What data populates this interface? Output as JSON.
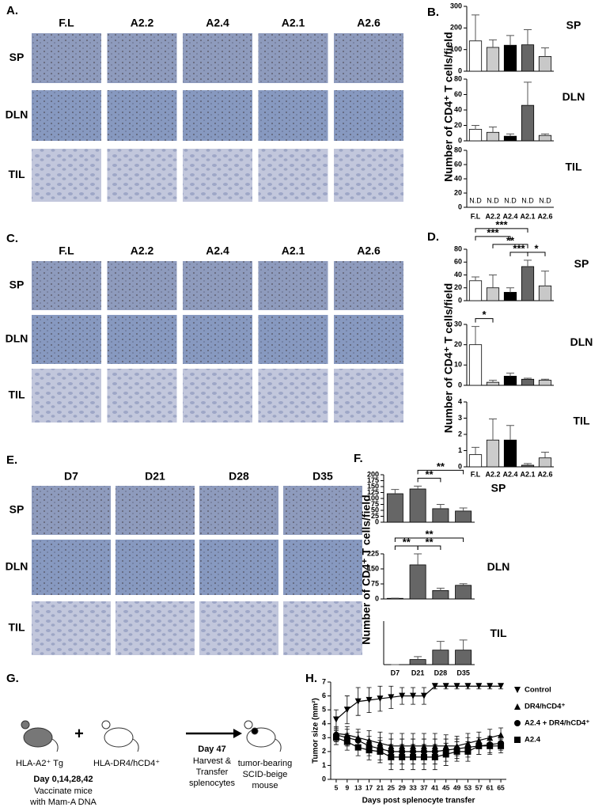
{
  "image_panels": [
    {
      "label": "A.",
      "columns": [
        "F.L",
        "A2.2",
        "A2.4",
        "A2.1",
        "A2.6"
      ],
      "rows": [
        "SP",
        "DLN",
        "TIL"
      ]
    },
    {
      "label": "C.",
      "columns": [
        "F.L",
        "A2.2",
        "A2.4",
        "A2.1",
        "A2.6"
      ],
      "rows": [
        "SP",
        "DLN",
        "TIL"
      ]
    },
    {
      "label": "E.",
      "columns": [
        "D7",
        "D21",
        "D28",
        "D35"
      ],
      "rows": [
        "SP",
        "DLN",
        "TIL"
      ]
    }
  ],
  "diagram": {
    "label": "G.",
    "donor": "HLA-A2⁺ Tg",
    "plus": "+",
    "helper": "HLA-DR4/hCD4⁺",
    "schedule": [
      "Day 0,14,28,42",
      "Vaccinate mice",
      "with Mam-A DNA"
    ],
    "transfer": [
      "Day 47",
      "Harvest &",
      "Transfer",
      "splenocytes"
    ],
    "recipient": [
      "tumor-bearing",
      "SCID-beige",
      "mouse"
    ]
  },
  "chart_data": [
    {
      "type": "bar",
      "label": "B.",
      "ylabel": "Number of CD4⁺ T cells/field",
      "categories": [
        "F.L",
        "A2.2",
        "A2.4",
        "A2.1",
        "A2.6"
      ],
      "colors": [
        "#ffffff",
        "#cccccc",
        "#000000",
        "#666666",
        "#c8c8c8"
      ],
      "subplots": [
        {
          "title": "SP",
          "values": [
            140,
            110,
            120,
            122,
            68
          ],
          "errors": [
            120,
            35,
            45,
            70,
            40
          ],
          "ylim": [
            0,
            300
          ],
          "yticks": [
            0,
            100,
            200,
            300
          ]
        },
        {
          "title": "DLN",
          "values": [
            15,
            11,
            6,
            46,
            7
          ],
          "errors": [
            5,
            7,
            3,
            30,
            2
          ],
          "ylim": [
            0,
            80
          ],
          "yticks": [
            0,
            20,
            40,
            60,
            80
          ]
        },
        {
          "title": "TIL",
          "values": [
            null,
            null,
            null,
            null,
            null
          ],
          "value_labels": [
            "N.D",
            "N.D",
            "N.D",
            "N.D",
            "N.D"
          ],
          "ylim": [
            0,
            80
          ],
          "yticks": [
            0,
            20,
            40,
            60,
            80
          ]
        }
      ]
    },
    {
      "type": "bar",
      "label": "D.",
      "ylabel": "Number of CD4⁺ T cells/field",
      "categories": [
        "F.L",
        "A2.2",
        "A2.4",
        "A2.1",
        "A2.6"
      ],
      "colors": [
        "#ffffff",
        "#cccccc",
        "#000000",
        "#666666",
        "#c8c8c8"
      ],
      "subplots": [
        {
          "title": "SP",
          "values": [
            31,
            20,
            13,
            53,
            23
          ],
          "errors": [
            6,
            20,
            7,
            10,
            23
          ],
          "ylim": [
            0,
            80
          ],
          "yticks": [
            0,
            20,
            40,
            60,
            80
          ],
          "brackets": [
            {
              "between": [
                "F.L",
                "A2.1"
              ],
              "label": "***"
            },
            {
              "between": [
                "A2.2",
                "A2.1"
              ],
              "label": "**"
            },
            {
              "between": [
                "A2.4",
                "A2.1"
              ],
              "label": "***"
            },
            {
              "between": [
                "A2.1",
                "A2.6"
              ],
              "label": "*"
            },
            {
              "between": [
                "F.L",
                "A2.4"
              ],
              "label": "***"
            }
          ]
        },
        {
          "title": "DLN",
          "values": [
            20,
            1.5,
            4.5,
            3,
            2.5
          ],
          "errors": [
            9,
            1,
            1.5,
            0.5,
            0.5
          ],
          "ylim": [
            0,
            30
          ],
          "yticks": [
            0,
            10,
            20,
            30
          ],
          "brackets": [
            {
              "between": [
                "F.L",
                "A2.2"
              ],
              "label": "*"
            }
          ]
        },
        {
          "title": "TIL",
          "values": [
            0.75,
            1.65,
            1.65,
            0.1,
            0.55
          ],
          "errors": [
            0.45,
            1.3,
            0.9,
            0.1,
            0.35
          ],
          "ylim": [
            0,
            4
          ],
          "yticks": [
            0,
            1,
            2,
            3,
            4
          ]
        }
      ]
    },
    {
      "type": "bar",
      "label": "F.",
      "ylabel": "Number of CD4⁺ T cells/field",
      "categories": [
        "D7",
        "D21",
        "D28",
        "D35"
      ],
      "colors": [
        "#666666",
        "#666666",
        "#666666",
        "#666666"
      ],
      "subplots": [
        {
          "title": "SP",
          "values": [
            120,
            140,
            57,
            47
          ],
          "errors": [
            18,
            12,
            18,
            13
          ],
          "ylim": [
            0,
            200
          ],
          "yticks": [
            0,
            25,
            50,
            75,
            100,
            125,
            150,
            175,
            200
          ],
          "brackets": [
            {
              "between": [
                "D21",
                "D28"
              ],
              "label": "**"
            },
            {
              "between": [
                "D21",
                "D35"
              ],
              "label": "**"
            }
          ]
        },
        {
          "title": "DLN",
          "values": [
            3,
            170,
            42,
            68
          ],
          "errors": [
            1,
            55,
            12,
            8
          ],
          "ylim": [
            0,
            225
          ],
          "yticks": [
            0,
            75,
            150,
            225
          ],
          "brackets": [
            {
              "between": [
                "D7",
                "D21"
              ],
              "label": "**"
            },
            {
              "between": [
                "D21",
                "D28"
              ],
              "label": "**"
            },
            {
              "between": [
                "D7",
                "D35"
              ],
              "label": "**"
            }
          ]
        },
        {
          "title": "TIL",
          "values": [
            0,
            0.35,
            1,
            1
          ],
          "errors": [
            0,
            0.2,
            0.6,
            0.7
          ],
          "ylim": [
            0,
            3
          ]
        }
      ]
    },
    {
      "type": "line",
      "label": "H.",
      "ylabel": "Tumor size (mm²)",
      "xlabel": "Days post splenocyte transfer",
      "x": [
        5,
        9,
        13,
        17,
        21,
        25,
        29,
        33,
        37,
        41,
        45,
        49,
        53,
        57,
        61,
        65
      ],
      "xlim": [
        3,
        67
      ],
      "xticks": [
        5,
        9,
        13,
        17,
        21,
        25,
        29,
        33,
        37,
        41,
        45,
        49,
        53,
        57,
        61,
        65
      ],
      "ylim": [
        0,
        7
      ],
      "yticks": [
        0,
        1,
        2,
        3,
        4,
        5,
        6,
        7
      ],
      "series": [
        {
          "name": "Control",
          "color": "#000000",
          "marker": "triangle-down",
          "values": [
            4.3,
            5.0,
            5.6,
            5.7,
            5.8,
            5.9,
            6.0,
            6.0,
            6.0,
            6.7,
            6.7,
            6.7,
            6.7,
            6.7,
            6.7,
            6.7
          ],
          "errors": [
            0.7,
            1.0,
            1.0,
            0.9,
            0.9,
            0.8,
            0.6,
            0.6,
            0.6,
            0.2,
            0.2,
            0.2,
            0.2,
            0.2,
            0.2,
            0.2
          ]
        },
        {
          "name": "DR4/hCD4⁺",
          "color": "#000000",
          "marker": "triangle-up",
          "values": [
            3.3,
            3.2,
            3.0,
            2.8,
            2.6,
            2.4,
            2.4,
            2.4,
            2.4,
            2.4,
            2.4,
            2.4,
            2.6,
            2.8,
            3.0,
            3.2
          ],
          "errors": [
            0.5,
            0.6,
            0.6,
            0.7,
            0.8,
            0.9,
            0.9,
            0.9,
            0.9,
            0.9,
            0.8,
            0.7,
            0.7,
            0.6,
            0.6,
            0.5
          ]
        },
        {
          "name": "A2.4 + DR4/hCD4⁺",
          "color": "#000000",
          "marker": "circle",
          "values": [
            3.2,
            3.0,
            2.8,
            2.4,
            2.2,
            2.0,
            2.0,
            2.0,
            2.0,
            2.0,
            2.1,
            2.2,
            2.3,
            2.4,
            2.5,
            2.6
          ],
          "errors": [
            0.5,
            0.6,
            0.6,
            0.7,
            0.8,
            0.9,
            0.9,
            0.9,
            0.9,
            0.9,
            0.8,
            0.7,
            0.7,
            0.6,
            0.6,
            0.5
          ]
        },
        {
          "name": "A2.4",
          "color": "#000000",
          "marker": "square",
          "values": [
            3.0,
            2.7,
            2.3,
            2.1,
            2.0,
            1.6,
            1.6,
            1.6,
            1.6,
            1.6,
            1.8,
            2.0,
            2.0,
            2.4,
            2.4,
            2.4
          ],
          "errors": [
            0.5,
            0.6,
            0.6,
            0.7,
            0.8,
            0.9,
            0.9,
            0.9,
            0.9,
            0.9,
            0.8,
            0.7,
            0.7,
            0.6,
            0.6,
            0.5
          ]
        }
      ]
    }
  ]
}
